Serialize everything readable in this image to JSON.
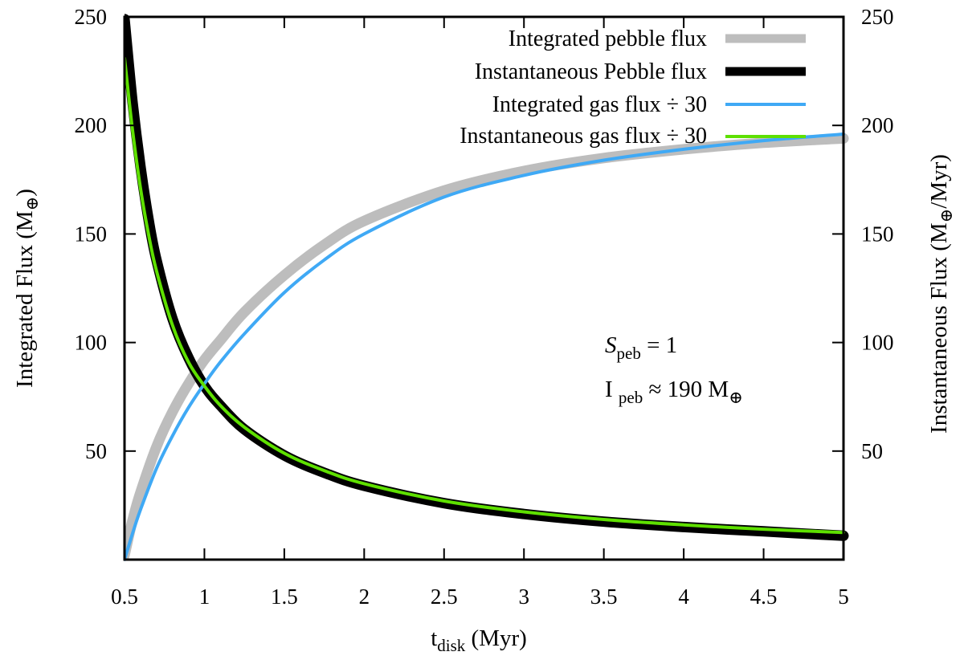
{
  "chart_data": {
    "type": "line",
    "x_axis": {
      "label_main": "t",
      "label_sub": "disk",
      "label_unit": " (Myr)",
      "range": [
        0.5,
        5
      ],
      "ticks": [
        0.5,
        1,
        1.5,
        2,
        2.5,
        3,
        3.5,
        4,
        4.5,
        5
      ],
      "tick_labels": [
        "0.5",
        "1",
        "1.5",
        "2",
        "2.5",
        "3",
        "3.5",
        "4",
        "4.5",
        "5"
      ]
    },
    "y_axis_left": {
      "label_main": "Integrated Flux (M",
      "label_sub": "⊕",
      "label_end": ")",
      "range": [
        0,
        250
      ],
      "ticks": [
        50,
        100,
        150,
        200,
        250
      ],
      "tick_labels": [
        "50",
        "100",
        "150",
        "200",
        "250"
      ]
    },
    "y_axis_right": {
      "label_main": "Instantaneous Flux (M",
      "label_sub": "⊕",
      "label_end": "/Myr)",
      "range": [
        0,
        250
      ],
      "ticks": [
        50,
        100,
        150,
        200,
        250
      ],
      "tick_labels": [
        "50",
        "100",
        "150",
        "200",
        "250"
      ]
    },
    "series": [
      {
        "name": "Integrated pebble flux",
        "color": "#bdbdbd",
        "axis": "left",
        "x": [
          0.5,
          0.55,
          0.6,
          0.7,
          0.8,
          0.9,
          1.0,
          1.1,
          1.25,
          1.5,
          1.75,
          2.0,
          2.5,
          3.0,
          3.5,
          4.0,
          4.5,
          5.0
        ],
        "values": [
          2,
          18,
          31,
          52,
          68,
          81,
          92,
          101,
          114,
          131,
          145,
          156,
          170,
          179,
          185,
          189,
          192,
          194
        ]
      },
      {
        "name": "Instantaneous Pebble flux",
        "color": "#000000",
        "axis": "right",
        "x": [
          0.5,
          0.55,
          0.6,
          0.65,
          0.7,
          0.8,
          0.9,
          1.0,
          1.1,
          1.25,
          1.5,
          1.75,
          2.0,
          2.5,
          3.0,
          3.5,
          4.0,
          4.5,
          5.0
        ],
        "values": [
          249,
          211,
          181,
          157,
          138,
          111,
          93,
          80,
          71,
          60,
          48,
          40,
          34,
          26,
          21,
          17.5,
          15,
          13,
          11
        ]
      },
      {
        "name": "Integrated gas flux ÷ 30",
        "color": "#3fa9f5",
        "axis": "left",
        "x": [
          0.5,
          0.55,
          0.6,
          0.7,
          0.8,
          0.9,
          1.0,
          1.1,
          1.25,
          1.5,
          1.75,
          2.0,
          2.5,
          3.0,
          3.5,
          4.0,
          4.5,
          5.0
        ],
        "values": [
          0,
          12,
          23,
          42,
          57,
          70,
          81,
          91,
          104,
          123,
          138,
          150,
          167,
          177,
          184,
          189,
          193,
          196
        ]
      },
      {
        "name": "Instantaneous gas flux ÷ 30",
        "color": "#5ee000",
        "axis": "right",
        "x": [
          0.5,
          0.55,
          0.6,
          0.65,
          0.7,
          0.8,
          0.9,
          1.0,
          1.1,
          1.25,
          1.5,
          1.75,
          2.0,
          2.5,
          3.0,
          3.5,
          4.0,
          4.5,
          5.0
        ],
        "values": [
          231,
          198,
          171,
          150,
          133,
          108,
          91,
          80,
          71,
          61,
          49,
          41,
          35,
          27,
          22,
          18.5,
          16,
          14,
          12.5
        ]
      }
    ],
    "legend_position": "top-right",
    "annotations": [
      {
        "main": "S",
        "sub": "peb",
        "rest": " = 1"
      },
      {
        "main": "I ",
        "sub": "peb",
        "rest": " ≈  190 M",
        "symbol": "⊕"
      }
    ]
  }
}
